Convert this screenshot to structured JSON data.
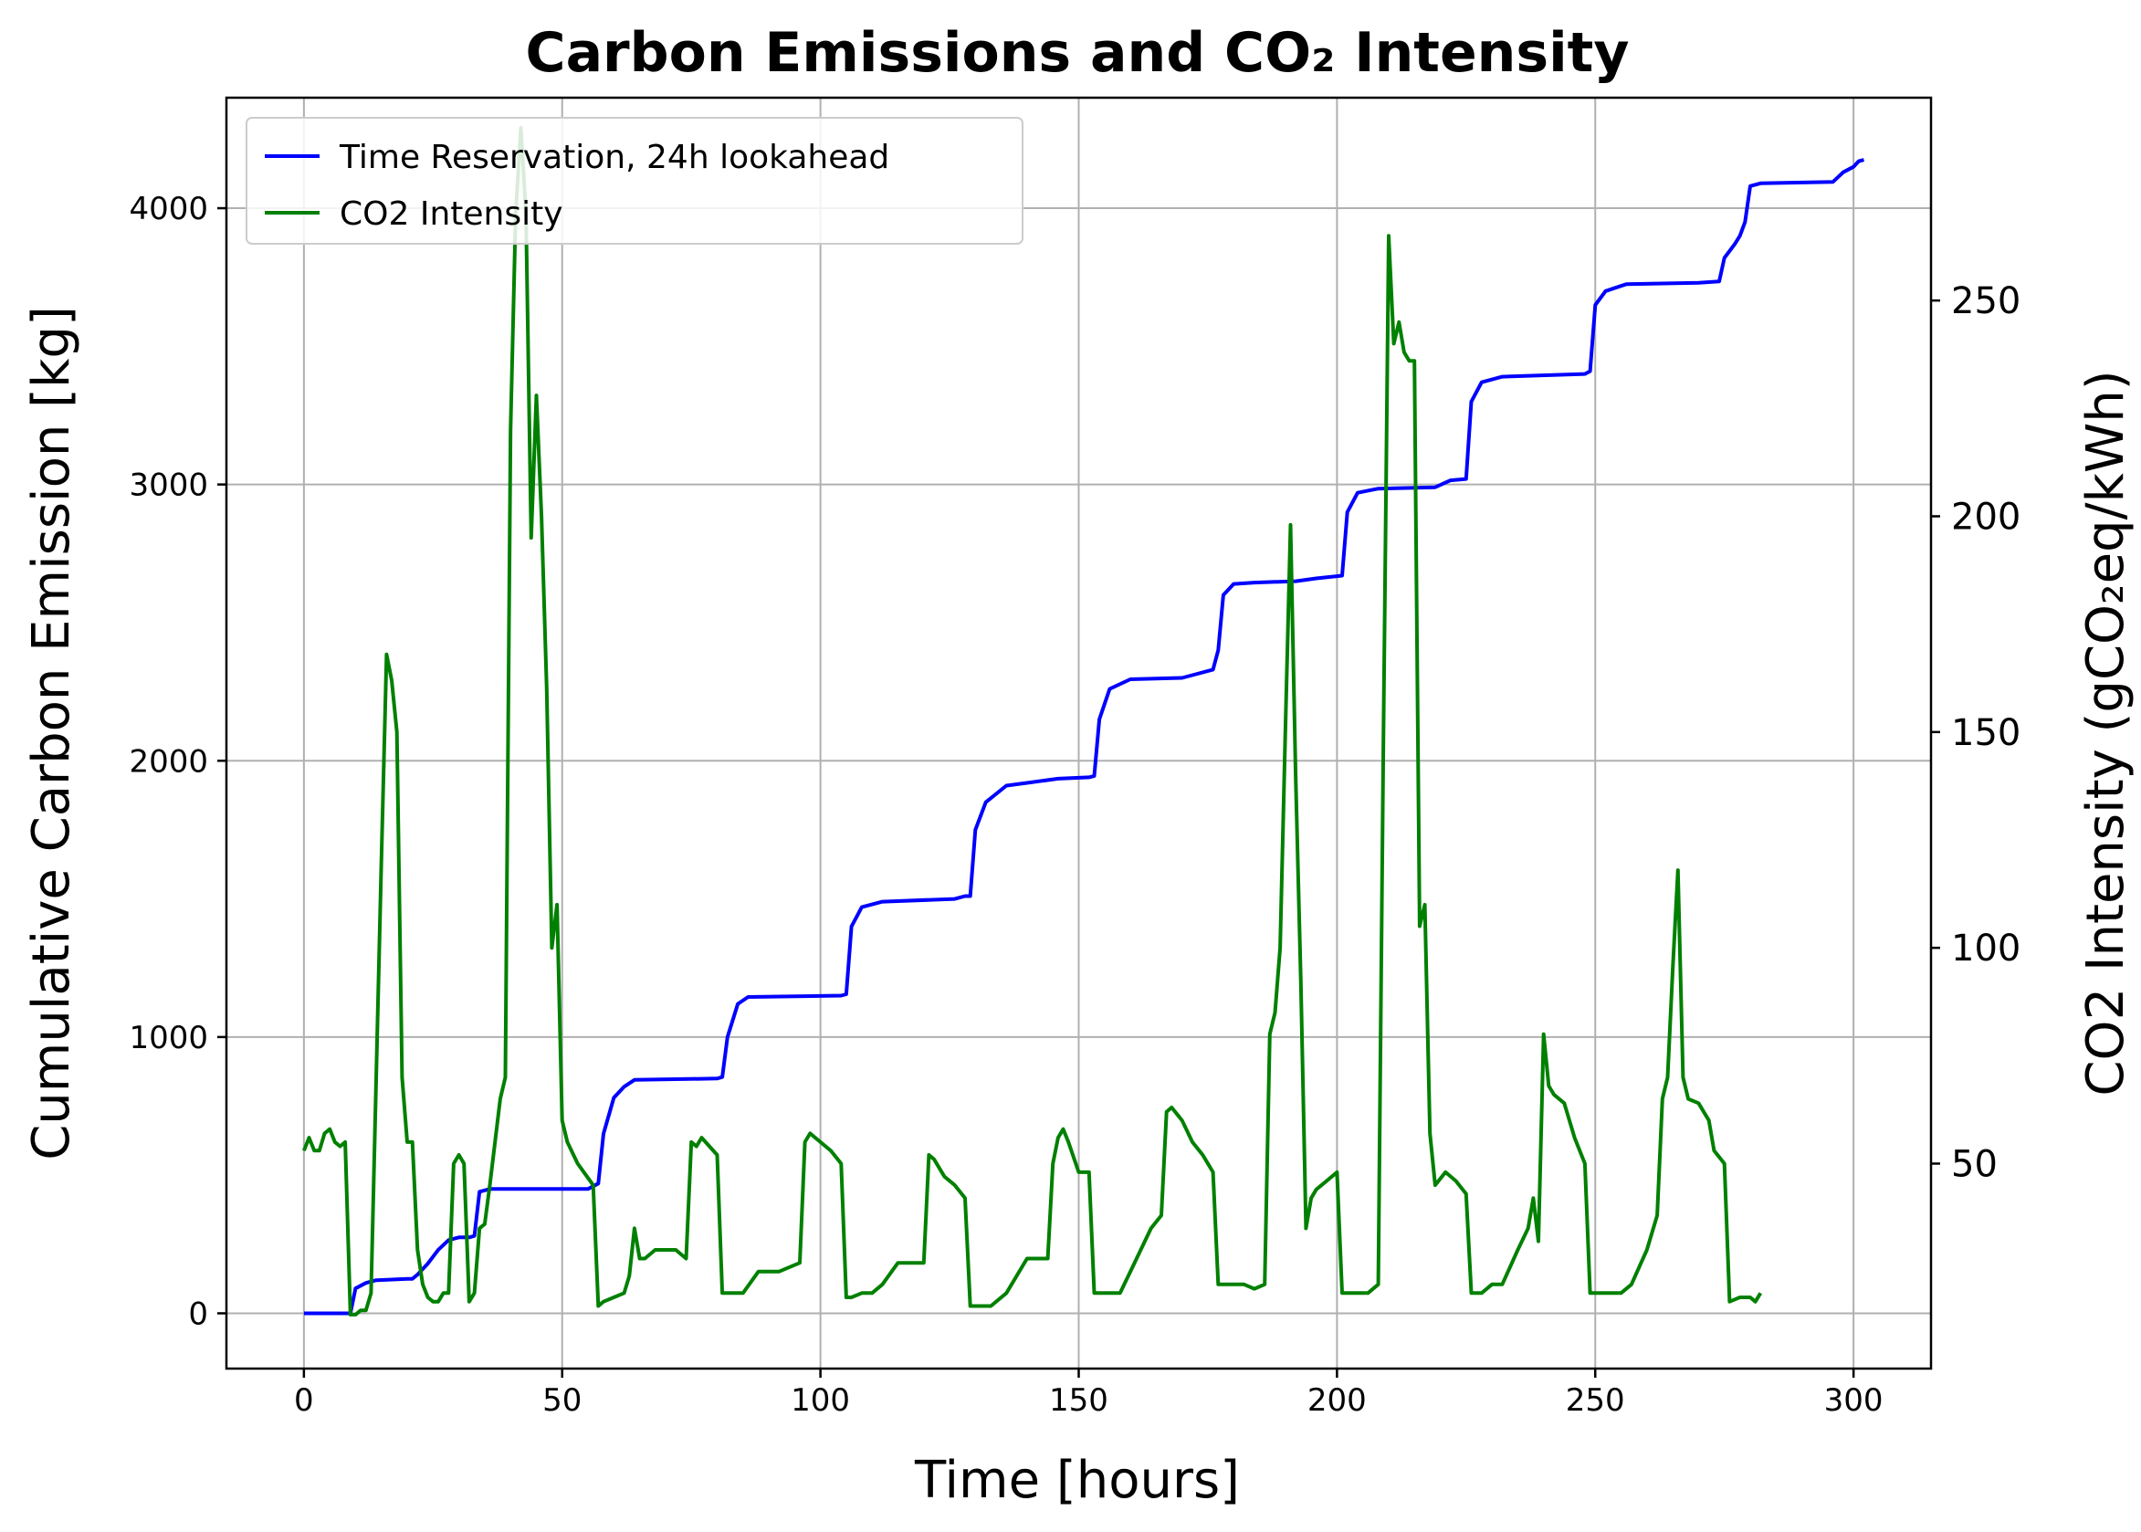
{
  "chart_data": {
    "type": "line",
    "title": "Carbon Emissions and CO₂ Intensity",
    "xlabel": "Time [hours]",
    "ylabel_left": "Cumulative Carbon Emission [kg]",
    "ylabel_right": "CO2 Intensity (gCO₂eq/kWh)",
    "xlim": [
      -15,
      315
    ],
    "ylim_left": [
      -200,
      4400
    ],
    "ylim_right": [
      2.5,
      297
    ],
    "x_ticks": [
      0,
      50,
      100,
      150,
      200,
      250,
      300
    ],
    "y_left_ticks": [
      0,
      1000,
      2000,
      3000,
      4000
    ],
    "y_right_ticks": [
      50,
      100,
      150,
      200,
      250
    ],
    "grid": true,
    "legend_position": "top-left",
    "series": [
      {
        "name": "Time Reservation, 24h lookahead",
        "axis": "left",
        "color": "#0000ff",
        "points": [
          [
            0,
            0
          ],
          [
            9,
            0
          ],
          [
            10,
            90
          ],
          [
            12,
            110
          ],
          [
            14,
            120
          ],
          [
            20,
            125
          ],
          [
            21,
            125
          ],
          [
            22,
            140
          ],
          [
            24,
            180
          ],
          [
            26,
            230
          ],
          [
            28,
            265
          ],
          [
            30,
            275
          ],
          [
            32,
            275
          ],
          [
            33,
            280
          ],
          [
            34,
            440
          ],
          [
            36,
            450
          ],
          [
            55,
            450
          ],
          [
            57,
            470
          ],
          [
            58,
            650
          ],
          [
            60,
            780
          ],
          [
            62,
            820
          ],
          [
            64,
            845
          ],
          [
            80,
            850
          ],
          [
            81,
            855
          ],
          [
            82,
            1000
          ],
          [
            84,
            1120
          ],
          [
            86,
            1145
          ],
          [
            104,
            1150
          ],
          [
            105,
            1155
          ],
          [
            106,
            1400
          ],
          [
            108,
            1470
          ],
          [
            112,
            1490
          ],
          [
            126,
            1500
          ],
          [
            128,
            1510
          ],
          [
            129,
            1510
          ],
          [
            130,
            1750
          ],
          [
            132,
            1850
          ],
          [
            136,
            1910
          ],
          [
            140,
            1920
          ],
          [
            146,
            1935
          ],
          [
            152,
            1940
          ],
          [
            153,
            1945
          ],
          [
            154,
            2150
          ],
          [
            156,
            2260
          ],
          [
            160,
            2295
          ],
          [
            170,
            2300
          ],
          [
            172,
            2310
          ],
          [
            176,
            2330
          ],
          [
            177,
            2400
          ],
          [
            178,
            2600
          ],
          [
            180,
            2640
          ],
          [
            184,
            2645
          ],
          [
            192,
            2650
          ],
          [
            196,
            2660
          ],
          [
            201,
            2670
          ],
          [
            202,
            2900
          ],
          [
            204,
            2970
          ],
          [
            208,
            2985
          ],
          [
            219,
            2990
          ],
          [
            222,
            3015
          ],
          [
            225,
            3020
          ],
          [
            226,
            3300
          ],
          [
            228,
            3370
          ],
          [
            232,
            3390
          ],
          [
            248,
            3400
          ],
          [
            249,
            3410
          ],
          [
            250,
            3650
          ],
          [
            252,
            3700
          ],
          [
            256,
            3725
          ],
          [
            270,
            3730
          ],
          [
            274,
            3735
          ],
          [
            275,
            3820
          ],
          [
            277,
            3870
          ],
          [
            278,
            3900
          ],
          [
            279,
            3950
          ],
          [
            280,
            4080
          ],
          [
            282,
            4090
          ],
          [
            296,
            4095
          ],
          [
            298,
            4130
          ],
          [
            300,
            4150
          ],
          [
            301,
            4170
          ],
          [
            302,
            4175
          ]
        ]
      },
      {
        "name": "CO2 Intensity",
        "axis": "right",
        "color": "#008000",
        "points": [
          [
            0,
            53
          ],
          [
            1,
            56
          ],
          [
            2,
            53
          ],
          [
            3,
            53
          ],
          [
            4,
            57
          ],
          [
            5,
            58
          ],
          [
            6,
            55
          ],
          [
            7,
            54
          ],
          [
            8,
            55
          ],
          [
            9,
            15
          ],
          [
            10,
            15
          ],
          [
            11,
            16
          ],
          [
            12,
            16
          ],
          [
            13,
            20
          ],
          [
            15,
            120
          ],
          [
            16,
            168
          ],
          [
            17,
            162
          ],
          [
            18,
            150
          ],
          [
            19,
            70
          ],
          [
            20,
            55
          ],
          [
            21,
            55
          ],
          [
            22,
            30
          ],
          [
            23,
            22
          ],
          [
            24,
            19
          ],
          [
            25,
            18
          ],
          [
            26,
            18
          ],
          [
            27,
            20
          ],
          [
            28,
            20
          ],
          [
            29,
            50
          ],
          [
            30,
            52
          ],
          [
            31,
            50
          ],
          [
            32,
            18
          ],
          [
            33,
            20
          ],
          [
            34,
            35
          ],
          [
            35,
            36
          ],
          [
            36,
            45
          ],
          [
            37,
            55
          ],
          [
            38,
            65
          ],
          [
            39,
            70
          ],
          [
            40,
            220
          ],
          [
            41,
            270
          ],
          [
            42,
            290
          ],
          [
            43,
            270
          ],
          [
            44,
            195
          ],
          [
            45,
            228
          ],
          [
            46,
            200
          ],
          [
            47,
            160
          ],
          [
            48,
            100
          ],
          [
            49,
            110
          ],
          [
            50,
            60
          ],
          [
            51,
            55
          ],
          [
            53,
            50
          ],
          [
            56,
            45
          ],
          [
            57,
            17
          ],
          [
            58,
            18
          ],
          [
            60,
            19
          ],
          [
            62,
            20
          ],
          [
            63,
            24
          ],
          [
            64,
            35
          ],
          [
            65,
            28
          ],
          [
            66,
            28
          ],
          [
            68,
            30
          ],
          [
            72,
            30
          ],
          [
            74,
            28
          ],
          [
            75,
            55
          ],
          [
            76,
            54
          ],
          [
            77,
            56
          ],
          [
            80,
            52
          ],
          [
            81,
            20
          ],
          [
            82,
            20
          ],
          [
            85,
            20
          ],
          [
            88,
            25
          ],
          [
            90,
            25
          ],
          [
            92,
            25
          ],
          [
            96,
            27
          ],
          [
            97,
            55
          ],
          [
            98,
            57
          ],
          [
            100,
            55
          ],
          [
            102,
            53
          ],
          [
            104,
            50
          ],
          [
            105,
            19
          ],
          [
            106,
            19
          ],
          [
            108,
            20
          ],
          [
            110,
            20
          ],
          [
            112,
            22
          ],
          [
            115,
            27
          ],
          [
            118,
            27
          ],
          [
            120,
            27
          ],
          [
            121,
            52
          ],
          [
            122,
            51
          ],
          [
            124,
            47
          ],
          [
            126,
            45
          ],
          [
            128,
            42
          ],
          [
            129,
            17
          ],
          [
            130,
            17
          ],
          [
            133,
            17
          ],
          [
            136,
            20
          ],
          [
            140,
            28
          ],
          [
            142,
            28
          ],
          [
            144,
            28
          ],
          [
            145,
            50
          ],
          [
            146,
            56
          ],
          [
            147,
            58
          ],
          [
            148,
            55
          ],
          [
            150,
            48
          ],
          [
            152,
            48
          ],
          [
            153,
            20
          ],
          [
            155,
            20
          ],
          [
            158,
            20
          ],
          [
            160,
            25
          ],
          [
            164,
            35
          ],
          [
            166,
            38
          ],
          [
            167,
            62
          ],
          [
            168,
            63
          ],
          [
            170,
            60
          ],
          [
            172,
            55
          ],
          [
            174,
            52
          ],
          [
            176,
            48
          ],
          [
            177,
            22
          ],
          [
            179,
            22
          ],
          [
            180,
            22
          ],
          [
            182,
            22
          ],
          [
            184,
            21
          ],
          [
            186,
            22
          ],
          [
            187,
            80
          ],
          [
            188,
            85
          ],
          [
            189,
            100
          ],
          [
            190,
            150
          ],
          [
            191,
            198
          ],
          [
            192,
            140
          ],
          [
            193,
            92
          ],
          [
            194,
            35
          ],
          [
            195,
            42
          ],
          [
            196,
            44
          ],
          [
            198,
            46
          ],
          [
            200,
            48
          ],
          [
            201,
            20
          ],
          [
            202,
            20
          ],
          [
            204,
            20
          ],
          [
            206,
            20
          ],
          [
            208,
            22
          ],
          [
            209,
            150
          ],
          [
            210,
            265
          ],
          [
            211,
            240
          ],
          [
            212,
            245
          ],
          [
            213,
            238
          ],
          [
            214,
            236
          ],
          [
            215,
            236
          ],
          [
            216,
            105
          ],
          [
            217,
            110
          ],
          [
            218,
            57
          ],
          [
            219,
            45
          ],
          [
            221,
            48
          ],
          [
            223,
            46
          ],
          [
            225,
            43
          ],
          [
            226,
            20
          ],
          [
            228,
            20
          ],
          [
            230,
            22
          ],
          [
            232,
            22
          ],
          [
            235,
            30
          ],
          [
            237,
            35
          ],
          [
            238,
            42
          ],
          [
            239,
            32
          ],
          [
            240,
            80
          ],
          [
            241,
            68
          ],
          [
            242,
            66
          ],
          [
            244,
            64
          ],
          [
            246,
            56
          ],
          [
            248,
            50
          ],
          [
            249,
            20
          ],
          [
            252,
            20
          ],
          [
            255,
            20
          ],
          [
            257,
            22
          ],
          [
            260,
            30
          ],
          [
            262,
            38
          ],
          [
            263,
            65
          ],
          [
            264,
            70
          ],
          [
            265,
            95
          ],
          [
            266,
            118
          ],
          [
            267,
            70
          ],
          [
            268,
            65
          ],
          [
            270,
            64
          ],
          [
            272,
            60
          ],
          [
            273,
            53
          ],
          [
            275,
            50
          ],
          [
            276,
            18
          ],
          [
            278,
            19
          ],
          [
            280,
            19
          ],
          [
            281,
            18
          ],
          [
            282,
            20
          ]
        ]
      }
    ]
  }
}
